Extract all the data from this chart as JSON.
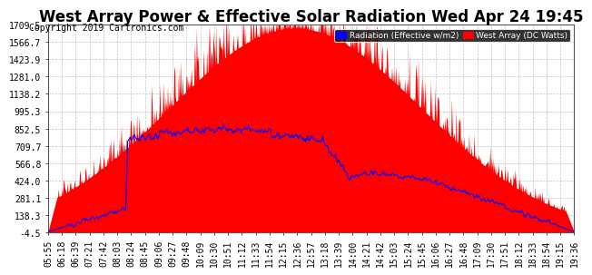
{
  "title": "West Array Power & Effective Solar Radiation Wed Apr 24 19:45",
  "copyright": "Copyright 2019 Cartronics.com",
  "legend_labels": [
    "Radiation (Effective w/m2)",
    "West Array (DC Watts)"
  ],
  "legend_colors": [
    "#0000ff",
    "#ff0000"
  ],
  "yticks": [
    -4.5,
    138.3,
    281.1,
    424.0,
    566.8,
    709.7,
    852.5,
    995.3,
    1138.2,
    1281.0,
    1423.9,
    1566.7,
    1709.5
  ],
  "ymin": -4.5,
  "ymax": 1709.5,
  "bg_color": "#ffffff",
  "plot_bg_color": "#ffffff",
  "grid_color": "#aaaaaa",
  "area_color": "#ff0000",
  "line_color": "#0000ff",
  "x_labels": [
    "05:55",
    "06:18",
    "06:39",
    "07:21",
    "07:42",
    "08:03",
    "08:24",
    "08:45",
    "09:06",
    "09:27",
    "09:48",
    "10:09",
    "10:30",
    "10:51",
    "11:12",
    "11:33",
    "11:54",
    "12:15",
    "12:36",
    "12:57",
    "13:18",
    "13:39",
    "14:00",
    "14:21",
    "14:42",
    "15:03",
    "15:24",
    "15:45",
    "16:06",
    "16:27",
    "16:48",
    "17:09",
    "17:30",
    "17:51",
    "18:12",
    "18:33",
    "18:54",
    "19:15",
    "19:36"
  ],
  "title_fontsize": 12,
  "axis_fontsize": 7,
  "copyright_fontsize": 7
}
